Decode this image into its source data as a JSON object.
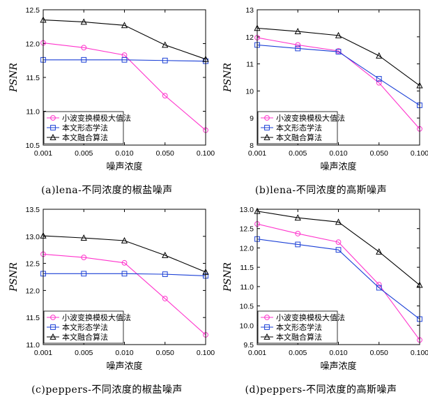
{
  "chart_data": [
    {
      "type": "line",
      "caption": "(a)lena-不同浓度的椒盐噪声",
      "x": [
        "0.001",
        "0.005",
        "0.010",
        "0.050",
        "0.100"
      ],
      "xlabel": "噪声浓度",
      "ylabel": "PSNR",
      "ylim": [
        10.5,
        12.5
      ],
      "yticks": [
        "10.5",
        "11.0",
        "11.5",
        "12.0",
        "12.5"
      ],
      "legend_position": "bottom-left",
      "series": [
        {
          "name": "小波变换模极大值法",
          "color": "#ff33cc",
          "marker": "circle",
          "values": [
            12.01,
            11.94,
            11.83,
            11.23,
            10.72
          ]
        },
        {
          "name": "本文形态学法",
          "color": "#1a3fd6",
          "marker": "square",
          "values": [
            11.76,
            11.76,
            11.76,
            11.75,
            11.74
          ]
        },
        {
          "name": "本文融合算法",
          "color": "#000000",
          "marker": "triangle",
          "values": [
            12.35,
            12.32,
            12.27,
            11.98,
            11.77
          ]
        }
      ]
    },
    {
      "type": "line",
      "caption": "(b)lena-不同浓度的高斯噪声",
      "x": [
        "0.001",
        "0.005",
        "0.010",
        "0.050",
        "0.100"
      ],
      "xlabel": "噪声浓度",
      "ylabel": "PSNR",
      "ylim": [
        8,
        13
      ],
      "yticks": [
        "8",
        "9",
        "10",
        "11",
        "12",
        "13"
      ],
      "legend_position": "bottom-left",
      "series": [
        {
          "name": "小波变换模极大值法",
          "color": "#ff33cc",
          "marker": "circle",
          "values": [
            11.97,
            11.7,
            11.48,
            10.3,
            8.6
          ]
        },
        {
          "name": "本文形态学法",
          "color": "#1a3fd6",
          "marker": "square",
          "values": [
            11.7,
            11.57,
            11.45,
            10.45,
            9.47
          ]
        },
        {
          "name": "本文融合算法",
          "color": "#000000",
          "marker": "triangle",
          "values": [
            12.32,
            12.2,
            12.05,
            11.3,
            10.2
          ]
        }
      ]
    },
    {
      "type": "line",
      "caption": "(c)peppers-不同浓度的椒盐噪声",
      "x": [
        "0.001",
        "0.005",
        "0.010",
        "0.050",
        "0.100"
      ],
      "xlabel": "噪声浓度",
      "ylabel": "PSNR",
      "ylim": [
        11.0,
        13.5
      ],
      "yticks": [
        "11.0",
        "11.5",
        "12.0",
        "12.5",
        "13.0",
        "13.5"
      ],
      "legend_position": "bottom-left",
      "series": [
        {
          "name": "小波变换模极大值法",
          "color": "#ff33cc",
          "marker": "circle",
          "values": [
            12.67,
            12.61,
            12.51,
            11.85,
            11.18
          ]
        },
        {
          "name": "本文形态学法",
          "color": "#1a3fd6",
          "marker": "square",
          "values": [
            12.31,
            12.31,
            12.31,
            12.3,
            12.27
          ]
        },
        {
          "name": "本文融合算法",
          "color": "#000000",
          "marker": "triangle",
          "values": [
            13.01,
            12.97,
            12.92,
            12.65,
            12.34
          ]
        }
      ]
    },
    {
      "type": "line",
      "caption": "(d)peppers-不同浓度的高斯噪声",
      "x": [
        "0.001",
        "0.005",
        "0.010",
        "0.050",
        "0.100"
      ],
      "xlabel": "噪声浓度",
      "ylabel": "PSNR",
      "ylim": [
        9.5,
        13.0
      ],
      "yticks": [
        "9.5",
        "10.0",
        "10.5",
        "11.0",
        "11.5",
        "12.0",
        "12.5",
        "13.0"
      ],
      "legend_position": "bottom-left",
      "series": [
        {
          "name": "小波变换模极大值法",
          "color": "#ff33cc",
          "marker": "circle",
          "values": [
            12.62,
            12.37,
            12.15,
            11.05,
            9.62
          ]
        },
        {
          "name": "本文形态学法",
          "color": "#1a3fd6",
          "marker": "square",
          "values": [
            12.23,
            12.09,
            11.95,
            10.97,
            10.16
          ]
        },
        {
          "name": "本文融合算法",
          "color": "#000000",
          "marker": "triangle",
          "values": [
            12.95,
            12.78,
            12.67,
            11.9,
            11.04
          ]
        }
      ]
    }
  ]
}
